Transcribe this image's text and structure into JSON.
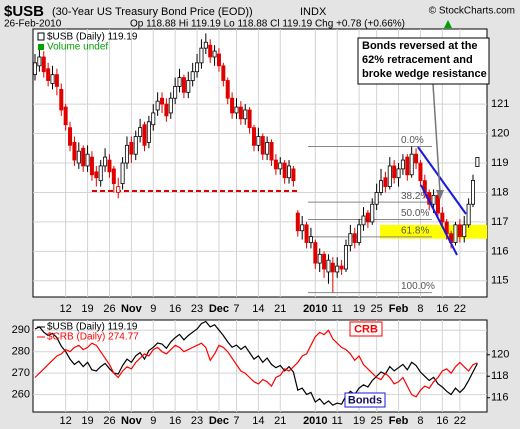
{
  "header": {
    "symbol": "$USB",
    "name": "(30-Year US Treasury Bond Price (EOD))",
    "exchange": "INDX",
    "copyright": "© StockCharts.com",
    "date": "26-Feb-2010",
    "quote": "Op 118.88 Hi 119.19 Lo 118.88 Cl 119.19 Chg +0.78 (+0.66%)"
  },
  "chart_data": [
    {
      "type": "candlestick",
      "legend": [
        "$USB (Daily) 119.19",
        "Volume undef"
      ],
      "categories": [
        null,
        null,
        null,
        null,
        null,
        null,
        null,
        "12",
        null,
        null,
        null,
        null,
        "19",
        null,
        null,
        null,
        null,
        "26",
        null,
        null,
        null,
        null,
        "Nov",
        null,
        null,
        null,
        null,
        "9",
        null,
        null,
        null,
        null,
        "16",
        null,
        null,
        null,
        null,
        "23",
        null,
        null,
        null,
        null,
        "Dec",
        null,
        null,
        null,
        "7",
        null,
        null,
        null,
        null,
        "14",
        null,
        null,
        null,
        null,
        "21",
        null,
        null,
        null,
        null,
        null,
        null,
        null,
        "2010",
        null,
        null,
        null,
        null,
        "11",
        null,
        null,
        null,
        null,
        "19",
        null,
        null,
        null,
        "25",
        null,
        null,
        null,
        null,
        "Feb",
        null,
        null,
        null,
        null,
        "8",
        null,
        null,
        null,
        null,
        "16",
        null,
        null,
        null,
        "22",
        null,
        null,
        null,
        null
      ],
      "candles": [
        [
          122.0,
          122.7,
          121.8,
          122.4
        ],
        [
          122.3,
          122.9,
          122.1,
          122.6
        ],
        [
          122.6,
          122.8,
          121.9,
          122.1
        ],
        [
          122.2,
          122.4,
          121.6,
          121.8
        ],
        [
          121.7,
          122.3,
          121.5,
          122.0
        ],
        [
          122.0,
          122.2,
          121.3,
          121.6
        ],
        [
          121.5,
          121.7,
          120.6,
          120.8
        ],
        [
          120.9,
          121.0,
          120.1,
          120.3
        ],
        [
          120.2,
          120.4,
          119.4,
          119.6
        ],
        [
          119.7,
          119.9,
          118.9,
          119.1
        ],
        [
          119.0,
          119.7,
          118.8,
          119.4
        ],
        [
          119.5,
          119.6,
          118.7,
          118.9
        ],
        [
          118.9,
          119.6,
          118.7,
          119.3
        ],
        [
          119.2,
          119.4,
          118.4,
          118.6
        ],
        [
          118.7,
          118.9,
          118.2,
          118.5
        ],
        [
          118.4,
          119.1,
          118.2,
          118.9
        ],
        [
          118.9,
          119.5,
          118.7,
          119.2
        ],
        [
          119.1,
          119.3,
          118.5,
          118.7
        ],
        [
          118.8,
          118.9,
          118.0,
          118.3
        ],
        [
          118.0,
          118.5,
          117.8,
          118.2
        ],
        [
          118.3,
          119.2,
          118.1,
          119.0
        ],
        [
          119.0,
          119.9,
          118.8,
          119.6
        ],
        [
          119.7,
          119.9,
          119.0,
          119.3
        ],
        [
          119.3,
          120.1,
          119.1,
          119.9
        ],
        [
          119.9,
          120.5,
          119.7,
          120.2
        ],
        [
          120.3,
          120.4,
          119.4,
          119.6
        ],
        [
          119.7,
          120.6,
          119.5,
          120.4
        ],
        [
          120.3,
          121.0,
          120.1,
          120.7
        ],
        [
          120.8,
          121.4,
          120.6,
          121.1
        ],
        [
          121.2,
          121.4,
          120.7,
          121.0
        ],
        [
          121.0,
          121.2,
          120.4,
          120.6
        ],
        [
          120.7,
          121.4,
          120.5,
          121.2
        ],
        [
          121.2,
          121.9,
          121.0,
          121.6
        ],
        [
          121.6,
          122.2,
          121.4,
          121.9
        ],
        [
          121.9,
          122.0,
          121.2,
          121.4
        ],
        [
          121.4,
          122.1,
          121.2,
          121.8
        ],
        [
          121.8,
          122.4,
          121.6,
          122.1
        ],
        [
          122.1,
          122.7,
          121.9,
          122.4
        ],
        [
          122.4,
          123.2,
          122.2,
          122.9
        ],
        [
          122.9,
          123.4,
          122.7,
          123.1
        ],
        [
          123.0,
          123.2,
          122.4,
          122.6
        ],
        [
          122.6,
          123.0,
          122.3,
          122.8
        ],
        [
          122.7,
          122.9,
          122.1,
          122.3
        ],
        [
          122.3,
          122.4,
          121.6,
          121.8
        ],
        [
          121.8,
          121.9,
          121.0,
          121.2
        ],
        [
          121.2,
          121.4,
          120.5,
          120.7
        ],
        [
          120.7,
          121.2,
          120.5,
          120.9
        ],
        [
          120.9,
          121.1,
          120.3,
          120.5
        ],
        [
          120.5,
          121.0,
          120.3,
          120.8
        ],
        [
          120.8,
          120.9,
          120.0,
          120.2
        ],
        [
          120.2,
          120.3,
          119.4,
          119.6
        ],
        [
          119.6,
          120.2,
          119.4,
          119.9
        ],
        [
          119.9,
          120.0,
          119.1,
          119.3
        ],
        [
          119.3,
          119.9,
          119.1,
          119.7
        ],
        [
          119.7,
          119.8,
          118.9,
          119.1
        ],
        [
          119.1,
          119.3,
          118.6,
          118.8
        ],
        [
          118.8,
          119.2,
          118.6,
          119.0
        ],
        [
          119.0,
          119.1,
          118.3,
          118.5
        ],
        [
          118.5,
          119.1,
          118.3,
          118.9
        ],
        [
          118.8,
          118.9,
          118.2,
          118.4
        ],
        [
          117.3,
          117.4,
          116.5,
          116.7
        ],
        [
          116.7,
          117.2,
          116.4,
          116.9
        ],
        [
          116.9,
          117.0,
          116.1,
          116.3
        ],
        [
          116.3,
          116.8,
          116.1,
          116.5
        ],
        [
          116.3,
          116.4,
          115.4,
          115.6
        ],
        [
          115.6,
          116.1,
          115.3,
          115.9
        ],
        [
          115.9,
          116.0,
          115.1,
          115.4
        ],
        [
          115.3,
          115.9,
          114.9,
          115.7
        ],
        [
          115.6,
          115.8,
          114.6,
          115.3
        ],
        [
          115.3,
          115.8,
          115.1,
          115.5
        ],
        [
          115.5,
          115.7,
          115.2,
          115.4
        ],
        [
          115.4,
          116.4,
          115.3,
          116.2
        ],
        [
          116.2,
          116.9,
          116.0,
          116.6
        ],
        [
          116.6,
          116.8,
          116.1,
          116.3
        ],
        [
          116.3,
          117.1,
          116.2,
          116.9
        ],
        [
          116.9,
          117.5,
          116.7,
          117.2
        ],
        [
          117.3,
          117.4,
          116.8,
          117.0
        ],
        [
          117.0,
          117.8,
          116.9,
          117.6
        ],
        [
          117.6,
          118.3,
          117.4,
          118.0
        ],
        [
          118.0,
          118.8,
          117.9,
          118.4
        ],
        [
          118.5,
          118.7,
          118.0,
          118.2
        ],
        [
          118.2,
          119.2,
          118.1,
          118.9
        ],
        [
          118.9,
          119.1,
          118.3,
          118.5
        ],
        [
          118.5,
          119.0,
          118.2,
          118.8
        ],
        [
          118.8,
          119.3,
          118.6,
          119.1
        ],
        [
          119.2,
          119.3,
          118.4,
          118.6
        ],
        [
          118.6,
          119.56,
          118.5,
          119.3
        ],
        [
          119.3,
          119.5,
          118.8,
          119.0
        ],
        [
          119.0,
          119.1,
          118.2,
          118.4
        ],
        [
          118.4,
          118.6,
          117.8,
          118.0
        ],
        [
          118.0,
          118.1,
          117.4,
          117.6
        ],
        [
          117.6,
          118.1,
          117.3,
          117.9
        ],
        [
          117.9,
          118.0,
          117.1,
          117.3
        ],
        [
          117.3,
          117.5,
          116.8,
          117.0
        ],
        [
          117.0,
          117.1,
          116.4,
          116.6
        ],
        [
          116.6,
          116.7,
          116.1,
          116.3
        ],
        [
          116.3,
          117.0,
          116.2,
          116.9
        ],
        [
          116.9,
          117.1,
          116.3,
          116.5
        ],
        [
          116.5,
          117.2,
          116.3,
          116.9
        ],
        [
          116.9,
          117.8,
          116.8,
          117.6
        ],
        [
          117.6,
          118.6,
          117.5,
          118.41
        ],
        [
          118.88,
          119.19,
          118.88,
          119.19
        ]
      ],
      "ylim": [
        114.45,
        123.55
      ],
      "yticks": [
        115,
        116,
        117,
        118,
        119,
        120,
        121
      ],
      "grid": true,
      "support_line": 118.05,
      "highlight_band": [
        116.43,
        116.9
      ],
      "fib_levels": [
        {
          "label": "0.0%",
          "value": 119.56
        },
        {
          "label": "38.2%",
          "value": 117.67
        },
        {
          "label": "50.0%",
          "value": 117.08
        },
        {
          "label": "61.8%",
          "value": 116.49
        },
        {
          "label": "100.0%",
          "value": 114.6
        }
      ],
      "annotation": [
        "Bonds reversed at the",
        "62% retracement and",
        "broke wedge resistance"
      ]
    },
    {
      "type": "line",
      "categories": [
        null,
        null,
        null,
        null,
        null,
        null,
        null,
        "12",
        null,
        null,
        null,
        null,
        "19",
        null,
        null,
        null,
        null,
        "26",
        null,
        null,
        null,
        null,
        "Nov",
        null,
        null,
        null,
        null,
        "9",
        null,
        null,
        null,
        null,
        "16",
        null,
        null,
        null,
        null,
        "23",
        null,
        null,
        null,
        null,
        "Dec",
        null,
        null,
        null,
        "7",
        null,
        null,
        null,
        null,
        "14",
        null,
        null,
        null,
        null,
        "21",
        null,
        null,
        null,
        null,
        null,
        null,
        null,
        "2010",
        null,
        null,
        null,
        null,
        "11",
        null,
        null,
        null,
        null,
        "19",
        null,
        null,
        null,
        "25",
        null,
        null,
        null,
        null,
        "Feb",
        null,
        null,
        null,
        null,
        "8",
        null,
        null,
        null,
        null,
        "16",
        null,
        null,
        null,
        "22",
        null,
        null,
        null,
        null
      ],
      "series": [
        {
          "name": "$USB (Daily) 119.19",
          "color": "#000000",
          "axis": "y2",
          "values": [
            122.4,
            122.6,
            122.1,
            121.8,
            122.0,
            121.6,
            120.8,
            120.3,
            119.6,
            119.1,
            119.4,
            118.9,
            119.3,
            118.6,
            118.5,
            118.9,
            119.2,
            118.7,
            118.3,
            118.2,
            119.0,
            119.6,
            119.3,
            119.9,
            120.2,
            119.6,
            120.4,
            120.7,
            121.1,
            121.0,
            120.6,
            121.2,
            121.6,
            121.9,
            121.4,
            121.8,
            122.1,
            122.4,
            122.9,
            123.1,
            122.6,
            122.8,
            122.3,
            121.8,
            121.2,
            120.7,
            120.9,
            120.5,
            120.8,
            120.2,
            119.6,
            119.9,
            119.3,
            119.7,
            119.1,
            118.8,
            119.0,
            118.5,
            118.9,
            118.4,
            116.7,
            116.9,
            116.3,
            116.5,
            115.6,
            115.9,
            115.4,
            115.7,
            115.3,
            115.5,
            115.4,
            116.2,
            116.6,
            116.3,
            116.9,
            117.2,
            117.0,
            117.6,
            118.0,
            118.4,
            118.2,
            118.9,
            118.5,
            118.8,
            119.1,
            118.6,
            119.3,
            119.0,
            118.4,
            118.0,
            117.6,
            117.9,
            117.3,
            117.0,
            116.6,
            116.3,
            116.9,
            116.5,
            116.9,
            117.6,
            118.41,
            119.19
          ]
        },
        {
          "name": "$CRB (Daily) 274.77",
          "color": "#ff0000",
          "values": [
            268,
            270,
            272,
            274,
            276,
            278,
            279,
            281,
            280,
            282,
            283,
            281,
            282,
            284,
            283,
            280,
            277,
            274,
            270,
            268,
            271,
            273,
            272,
            275,
            277,
            279,
            278,
            281,
            282,
            280,
            279,
            281,
            283,
            282,
            280,
            281,
            282,
            283,
            284,
            282,
            276,
            279,
            283,
            282,
            280,
            277,
            274,
            271,
            270,
            268,
            266,
            265,
            267,
            266,
            264,
            268,
            269,
            272,
            271,
            273,
            275,
            278,
            279,
            283,
            287,
            289,
            288,
            290,
            286,
            284,
            282,
            281,
            279,
            276,
            278,
            274,
            272,
            270,
            268,
            267,
            270,
            268,
            265,
            266,
            268,
            264,
            260,
            259,
            262,
            264,
            263,
            266,
            268,
            271,
            272,
            270,
            273,
            275,
            273,
            271,
            274,
            274.77
          ]
        }
      ],
      "ylim": [
        251.9,
        294.8
      ],
      "yticks": [
        260,
        270,
        280,
        290
      ],
      "y2lim": [
        114.67,
        123.24
      ],
      "y2ticks": [
        116,
        118,
        120
      ],
      "grid": true,
      "labels": [
        "CRB",
        "Bonds"
      ]
    }
  ]
}
